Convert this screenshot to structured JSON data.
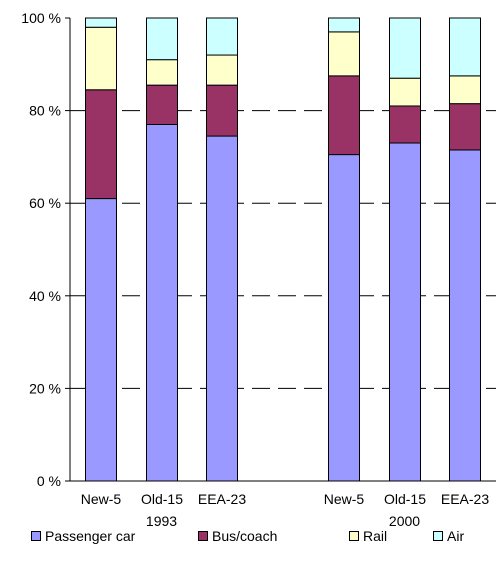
{
  "chart_data": {
    "type": "bar",
    "stacked": true,
    "ylim": [
      0,
      100
    ],
    "yticks": [
      {
        "value": 0,
        "label": "0 %"
      },
      {
        "value": 20,
        "label": "20 %"
      },
      {
        "value": 40,
        "label": "40 %"
      },
      {
        "value": 60,
        "label": "60 %"
      },
      {
        "value": 80,
        "label": "80 %"
      },
      {
        "value": 100,
        "label": "100 %"
      }
    ],
    "groups": [
      {
        "label": "1993",
        "categories": [
          "New-5",
          "Old-15",
          "EEA-23"
        ]
      },
      {
        "label": "2000",
        "categories": [
          "New-5",
          "Old-15",
          "EEA-23"
        ]
      }
    ],
    "series": [
      {
        "name": "Passenger car",
        "color": "#9999ff",
        "values": [
          61,
          77,
          74.5,
          70.5,
          73,
          71.5
        ]
      },
      {
        "name": "Bus/coach",
        "color": "#993366",
        "values": [
          23.5,
          8.5,
          11,
          17,
          8,
          10
        ]
      },
      {
        "name": "Rail",
        "color": "#ffffcc",
        "values": [
          13.5,
          5.5,
          6.5,
          9.5,
          6,
          6
        ]
      },
      {
        "name": "Air",
        "color": "#ccffff",
        "values": [
          2,
          9,
          8,
          3,
          13,
          12.5
        ]
      }
    ],
    "grid": true,
    "legend_position": "bottom"
  }
}
